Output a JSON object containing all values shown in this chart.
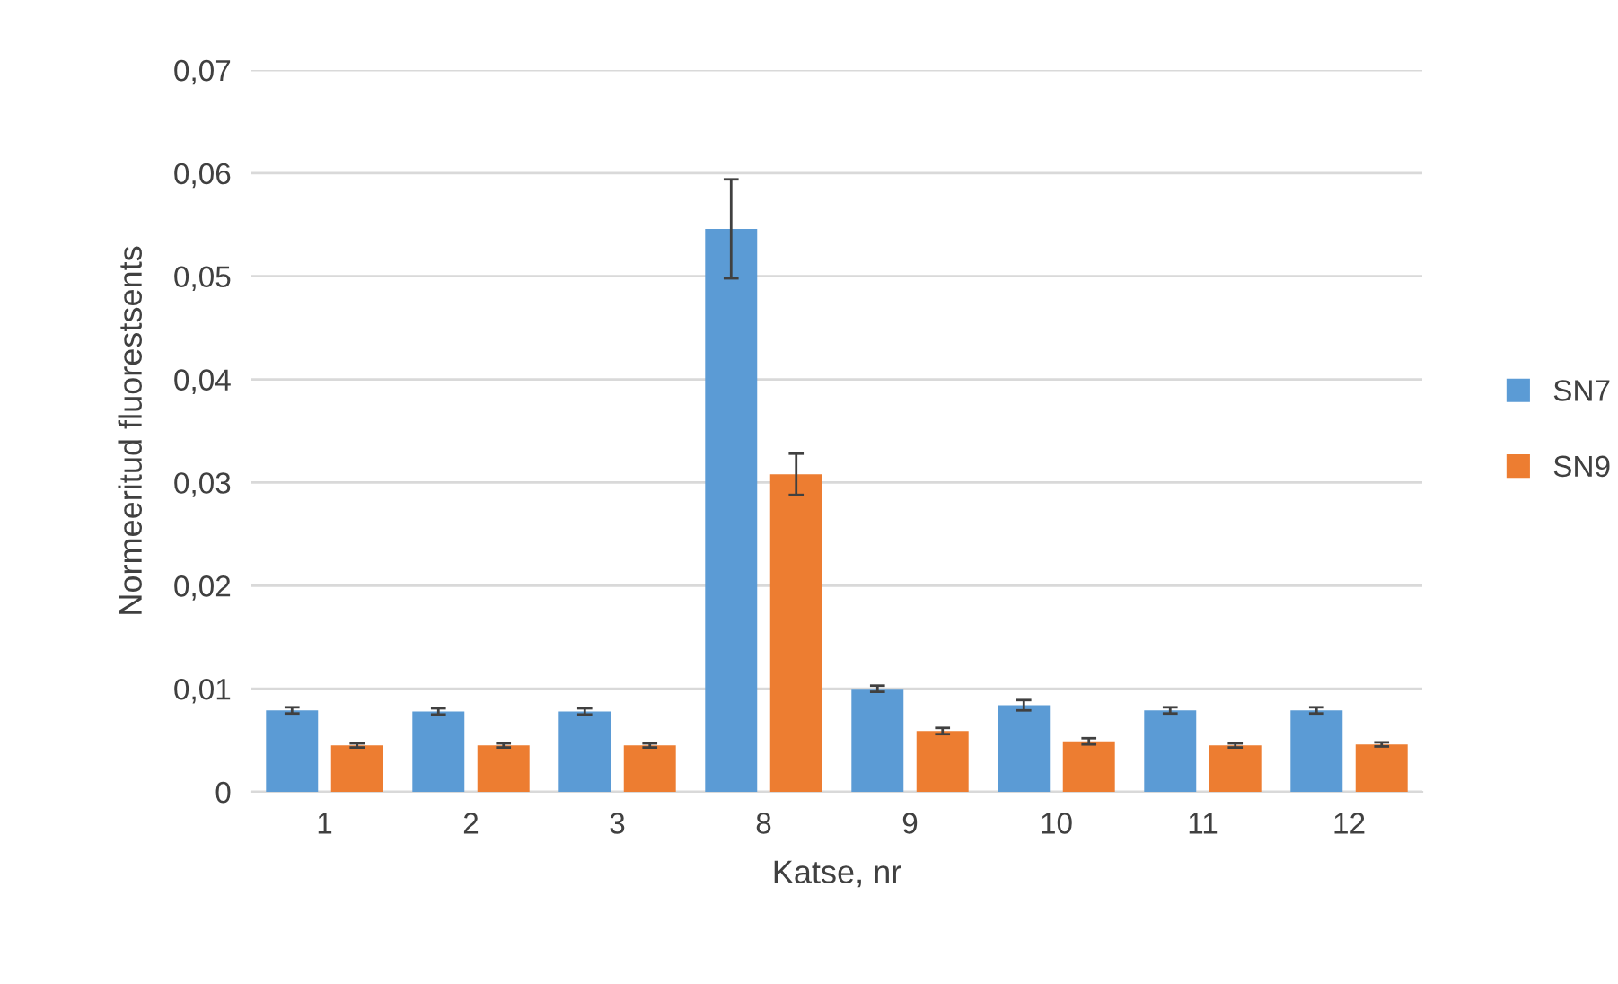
{
  "chart_data": {
    "type": "bar",
    "xlabel": "Katse, nr",
    "ylabel": "Normeeritud fluorestsents",
    "categories": [
      "1",
      "2",
      "3",
      "8",
      "9",
      "10",
      "11",
      "12"
    ],
    "series": [
      {
        "name": "SN7",
        "color": "#5b9bd5",
        "values": [
          0.0079,
          0.0078,
          0.0078,
          0.0546,
          0.01,
          0.0084,
          0.0079,
          0.0079
        ],
        "errors": [
          0.0003,
          0.0003,
          0.0003,
          0.0048,
          0.0003,
          0.0005,
          0.0003,
          0.0003
        ]
      },
      {
        "name": "SN9",
        "color": "#ed7d31",
        "values": [
          0.0045,
          0.0045,
          0.0045,
          0.0308,
          0.0059,
          0.0049,
          0.0045,
          0.0046
        ],
        "errors": [
          0.0002,
          0.0002,
          0.0002,
          0.002,
          0.0003,
          0.0003,
          0.0002,
          0.0002
        ]
      }
    ],
    "ylim": [
      0,
      0.07
    ],
    "yticks": [
      {
        "value": 0,
        "label": "0"
      },
      {
        "value": 0.01,
        "label": "0,01"
      },
      {
        "value": 0.02,
        "label": "0,02"
      },
      {
        "value": 0.03,
        "label": "0,03"
      },
      {
        "value": 0.04,
        "label": "0,04"
      },
      {
        "value": 0.05,
        "label": "0,05"
      },
      {
        "value": 0.06,
        "label": "0,06"
      },
      {
        "value": 0.07,
        "label": "0,07"
      }
    ],
    "grid": "y",
    "legend": "right"
  }
}
